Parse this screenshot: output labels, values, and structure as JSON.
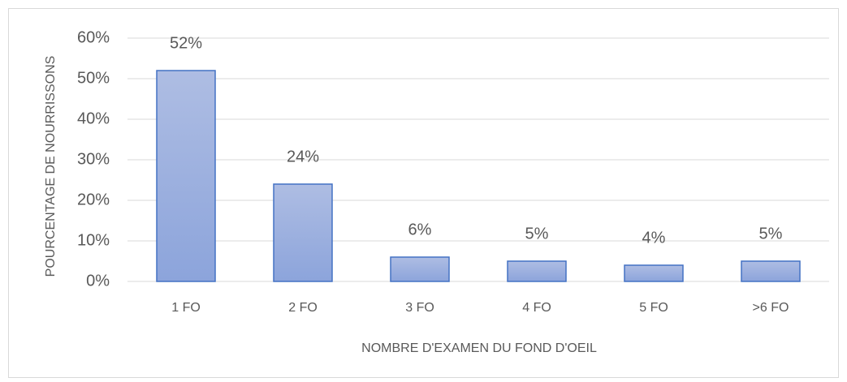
{
  "chart_data": {
    "type": "bar",
    "categories": [
      "1 FO",
      "2 FO",
      "3 FO",
      "4 FO",
      "5 FO",
      ">6 FO"
    ],
    "values": [
      52,
      24,
      6,
      5,
      4,
      5
    ],
    "value_labels": [
      "52%",
      "24%",
      "6%",
      "5%",
      "4%",
      "5%"
    ],
    "color": "#4472c4",
    "x_label": "NOMBRE D'EXAMEN DU FOND D'OEIL",
    "y_label": "POURCENTAGE DE NOURRISSONS",
    "ylim": [
      0,
      60
    ],
    "yticks": [
      {
        "value": 0,
        "label": "0%"
      },
      {
        "value": 10,
        "label": "10%"
      },
      {
        "value": 20,
        "label": "20%"
      },
      {
        "value": 30,
        "label": "30%"
      },
      {
        "value": 40,
        "label": "40%"
      },
      {
        "value": 50,
        "label": "50%"
      },
      {
        "value": 60,
        "label": "60%"
      }
    ],
    "grid": true
  }
}
